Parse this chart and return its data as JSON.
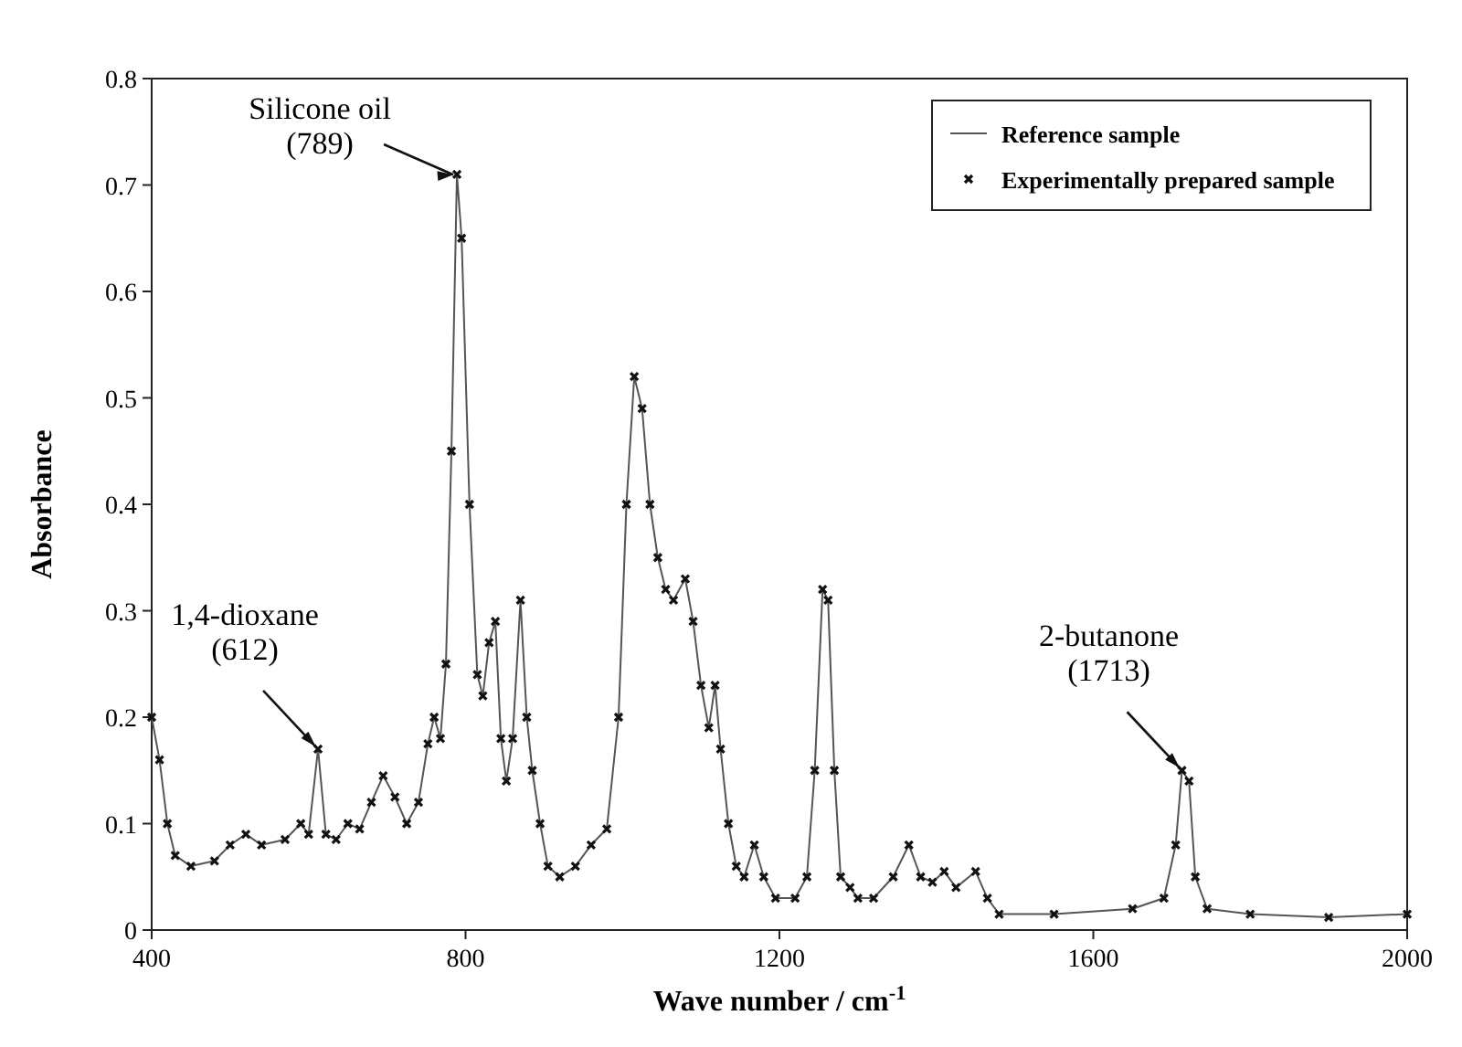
{
  "chart_data": {
    "type": "line",
    "xlabel": "Wave number / cm$^{-1}$",
    "ylabel": "Absorbance",
    "x": [
      400,
      410,
      420,
      430,
      450,
      480,
      500,
      520,
      540,
      570,
      590,
      600,
      612,
      622,
      635,
      650,
      665,
      680,
      695,
      710,
      725,
      740,
      752,
      760,
      768,
      775,
      782,
      789,
      795,
      805,
      815,
      822,
      830,
      838,
      845,
      852,
      860,
      870,
      878,
      885,
      895,
      905,
      920,
      940,
      960,
      980,
      995,
      1005,
      1015,
      1025,
      1035,
      1045,
      1055,
      1065,
      1080,
      1090,
      1100,
      1110,
      1118,
      1125,
      1135,
      1145,
      1155,
      1168,
      1180,
      1195,
      1220,
      1235,
      1245,
      1255,
      1262,
      1270,
      1278,
      1290,
      1300,
      1320,
      1345,
      1365,
      1380,
      1395,
      1410,
      1425,
      1450,
      1465,
      1480,
      1550,
      1650,
      1690,
      1705,
      1713,
      1722,
      1730,
      1745,
      1800,
      1900,
      2000
    ],
    "series": [
      {
        "name": "Reference sample",
        "color": "#555555",
        "values": [
          0.2,
          0.16,
          0.1,
          0.07,
          0.06,
          0.065,
          0.08,
          0.09,
          0.08,
          0.085,
          0.1,
          0.09,
          0.17,
          0.09,
          0.085,
          0.1,
          0.095,
          0.12,
          0.145,
          0.125,
          0.1,
          0.12,
          0.175,
          0.2,
          0.18,
          0.25,
          0.45,
          0.71,
          0.65,
          0.4,
          0.24,
          0.22,
          0.27,
          0.29,
          0.18,
          0.14,
          0.18,
          0.31,
          0.2,
          0.15,
          0.1,
          0.06,
          0.05,
          0.06,
          0.08,
          0.095,
          0.2,
          0.4,
          0.52,
          0.49,
          0.4,
          0.35,
          0.32,
          0.31,
          0.33,
          0.29,
          0.23,
          0.19,
          0.23,
          0.17,
          0.1,
          0.06,
          0.05,
          0.08,
          0.05,
          0.03,
          0.03,
          0.05,
          0.15,
          0.32,
          0.31,
          0.15,
          0.05,
          0.04,
          0.03,
          0.03,
          0.05,
          0.08,
          0.05,
          0.045,
          0.055,
          0.04,
          0.055,
          0.03,
          0.015,
          0.015,
          0.02,
          0.03,
          0.08,
          0.15,
          0.14,
          0.05,
          0.02,
          0.015,
          0.012,
          0.015
        ]
      },
      {
        "name": "Experimentally prepared sample",
        "type": "scatter",
        "marker": "cross",
        "color": "#111111",
        "values": [
          0.2,
          0.16,
          0.1,
          0.07,
          0.06,
          0.065,
          0.08,
          0.09,
          0.08,
          0.085,
          0.1,
          0.09,
          0.17,
          0.09,
          0.085,
          0.1,
          0.095,
          0.12,
          0.145,
          0.125,
          0.1,
          0.12,
          0.175,
          0.2,
          0.18,
          0.25,
          0.45,
          0.71,
          0.65,
          0.4,
          0.24,
          0.22,
          0.27,
          0.29,
          0.18,
          0.14,
          0.18,
          0.31,
          0.2,
          0.15,
          0.1,
          0.06,
          0.05,
          0.06,
          0.08,
          0.095,
          0.2,
          0.4,
          0.52,
          0.49,
          0.4,
          0.35,
          0.32,
          0.31,
          0.33,
          0.29,
          0.23,
          0.19,
          0.23,
          0.17,
          0.1,
          0.06,
          0.05,
          0.08,
          0.05,
          0.03,
          0.03,
          0.05,
          0.15,
          0.32,
          0.31,
          0.15,
          0.05,
          0.04,
          0.03,
          0.03,
          0.05,
          0.08,
          0.05,
          0.045,
          0.055,
          0.04,
          0.055,
          0.03,
          0.015,
          0.015,
          0.02,
          0.03,
          0.08,
          0.15,
          0.14,
          0.05,
          0.02,
          0.015,
          0.012,
          0.015
        ]
      }
    ],
    "xlim": [
      400,
      2000
    ],
    "xticks": [
      400,
      800,
      1200,
      1600,
      2000
    ],
    "ylim": [
      0,
      0.8
    ],
    "yticks": [
      0,
      0.1,
      0.2,
      0.3,
      0.4,
      0.5,
      0.6,
      0.7,
      0.8
    ],
    "grid": false,
    "legend": "top right",
    "line_style": "solid",
    "annotations": [
      {
        "text": "Silicone oil\n(789)",
        "x": 789,
        "y": 0.71
      },
      {
        "text": "1,4-dioxane\n(612)",
        "x": 612,
        "y": 0.17
      },
      {
        "text": "2-butanone\n(1713)",
        "x": 1713,
        "y": 0.15
      }
    ]
  }
}
